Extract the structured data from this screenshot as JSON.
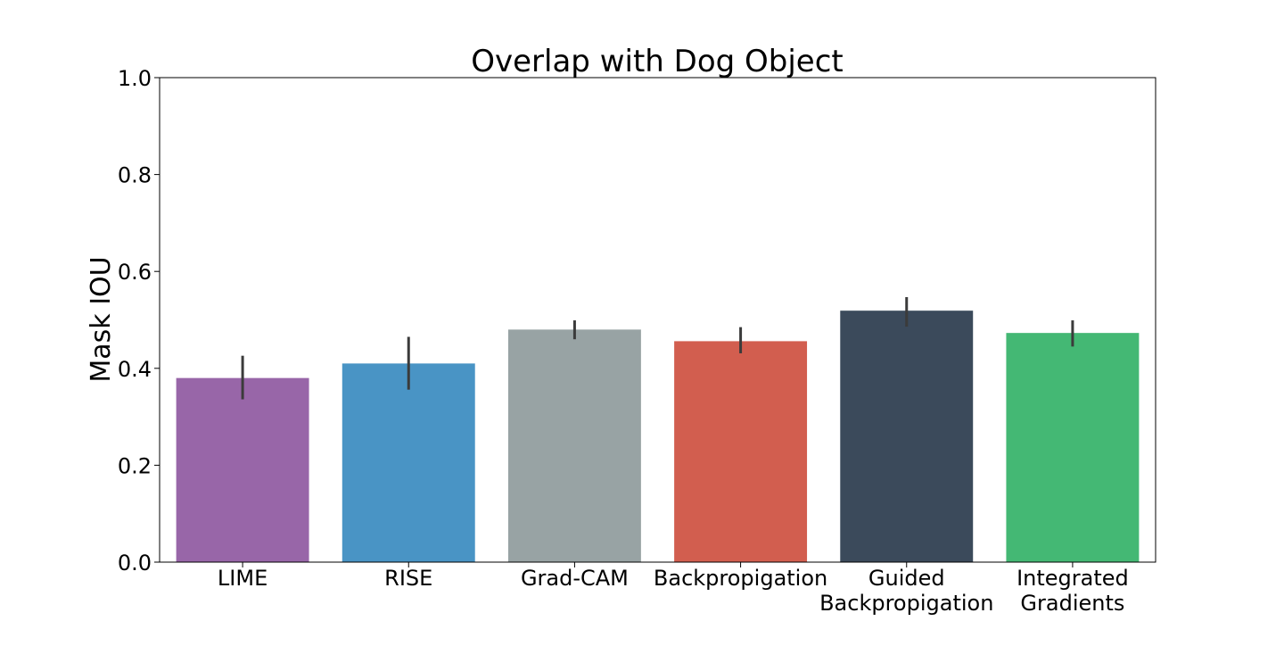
{
  "chart_data": {
    "type": "bar",
    "title": "Overlap with Dog Object",
    "xlabel": "",
    "ylabel": "Mask IOU",
    "ylim": [
      0,
      1.0
    ],
    "yticks": [
      "0.0",
      "0.2",
      "0.4",
      "0.6",
      "0.8",
      "1.0"
    ],
    "grid": false,
    "legend": "none",
    "categories": [
      [
        "LIME"
      ],
      [
        "RISE"
      ],
      [
        "Grad-CAM"
      ],
      [
        "Backpropigation"
      ],
      [
        "Guided",
        "Backpropigation"
      ],
      [
        "Integrated",
        "Gradients"
      ]
    ],
    "values": [
      0.38,
      0.41,
      0.48,
      0.456,
      0.519,
      0.473
    ],
    "error_bars": [
      [
        0.336,
        0.426
      ],
      [
        0.356,
        0.465
      ],
      [
        0.46,
        0.499
      ],
      [
        0.431,
        0.485
      ],
      [
        0.486,
        0.547
      ],
      [
        0.445,
        0.499
      ]
    ],
    "colors": [
      "#9866a8",
      "#4994c5",
      "#98a3a4",
      "#d25e4f",
      "#3b4a5b",
      "#44b874"
    ],
    "error_color": "#3b3b3b"
  }
}
